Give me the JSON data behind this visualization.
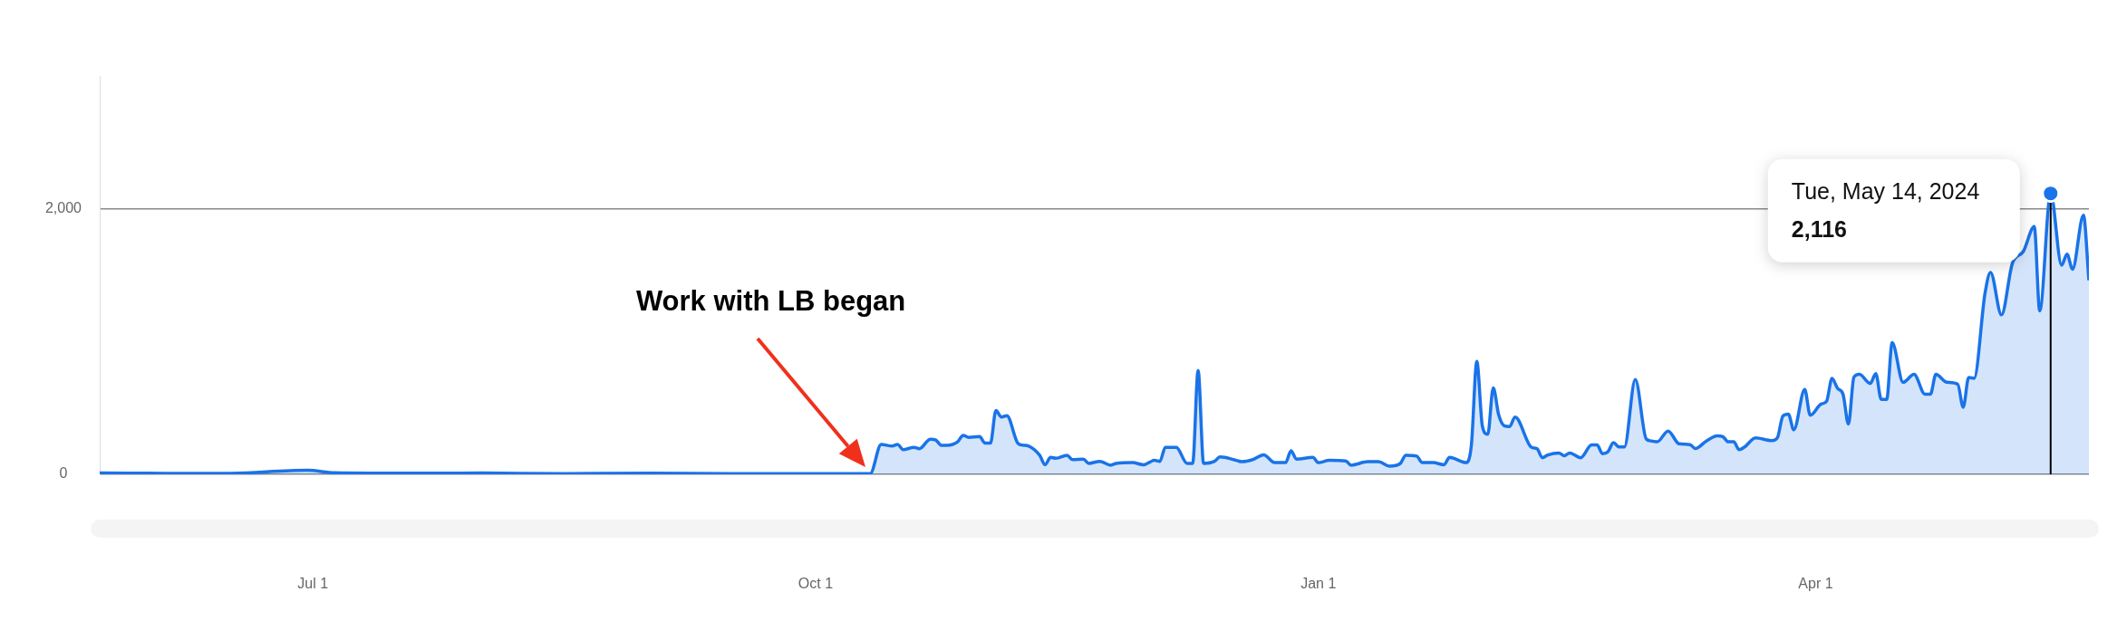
{
  "chart_data": {
    "type": "area",
    "color": "#1a73e8",
    "x": [
      "2023-05-23",
      "2023-06-01",
      "2023-06-15",
      "2023-06-30",
      "2023-07-05",
      "2023-07-20",
      "2023-08-01",
      "2023-08-15",
      "2023-09-01",
      "2023-09-15",
      "2023-10-01",
      "2023-10-11",
      "2023-10-13",
      "2023-10-15",
      "2023-10-16",
      "2023-10-17",
      "2023-10-19",
      "2023-10-20",
      "2023-10-22",
      "2023-10-23",
      "2023-10-24",
      "2023-10-25",
      "2023-10-27",
      "2023-10-28",
      "2023-10-29",
      "2023-10-31",
      "2023-11-01",
      "2023-11-02",
      "2023-11-03",
      "2023-11-04",
      "2023-11-05",
      "2023-11-07",
      "2023-11-08",
      "2023-11-09",
      "2023-11-11",
      "2023-11-12",
      "2023-11-13",
      "2023-11-14",
      "2023-11-16",
      "2023-11-17",
      "2023-11-19",
      "2023-11-20",
      "2023-11-22",
      "2023-11-24",
      "2023-11-25",
      "2023-11-28",
      "2023-11-30",
      "2023-12-02",
      "2023-12-03",
      "2023-12-04",
      "2023-12-06",
      "2023-12-08",
      "2023-12-09",
      "2023-12-10",
      "2023-12-11",
      "2023-12-13",
      "2023-12-14",
      "2023-12-17",
      "2023-12-18",
      "2023-12-20",
      "2023-12-22",
      "2023-12-24",
      "2023-12-26",
      "2023-12-27",
      "2023-12-28",
      "2023-12-31",
      "2024-01-01",
      "2024-01-03",
      "2024-01-06",
      "2024-01-07",
      "2024-01-10",
      "2024-01-12",
      "2024-01-14",
      "2024-01-16",
      "2024-01-17",
      "2024-01-19",
      "2024-01-20",
      "2024-01-22",
      "2024-01-24",
      "2024-01-25",
      "2024-01-28",
      "2024-01-29",
      "2024-01-30",
      "2024-01-31",
      "2024-02-01",
      "2024-02-02",
      "2024-02-03",
      "2024-02-04",
      "2024-02-05",
      "2024-02-06",
      "2024-02-09",
      "2024-02-10",
      "2024-02-11",
      "2024-02-12",
      "2024-02-14",
      "2024-02-15",
      "2024-02-16",
      "2024-02-18",
      "2024-02-20",
      "2024-02-21",
      "2024-02-22",
      "2024-02-23",
      "2024-02-24",
      "2024-02-25",
      "2024-02-26",
      "2024-02-28",
      "2024-03-01",
      "2024-03-02",
      "2024-03-03",
      "2024-03-05",
      "2024-03-07",
      "2024-03-09",
      "2024-03-10",
      "2024-03-12",
      "2024-03-14",
      "2024-03-15",
      "2024-03-16",
      "2024-03-17",
      "2024-03-18",
      "2024-03-19",
      "2024-03-21",
      "2024-03-24",
      "2024-03-25",
      "2024-03-26",
      "2024-03-27",
      "2024-03-28",
      "2024-03-30",
      "2024-03-31",
      "2024-04-02",
      "2024-04-03",
      "2024-04-04",
      "2024-04-05",
      "2024-04-06",
      "2024-04-07",
      "2024-04-08",
      "2024-04-09",
      "2024-04-11",
      "2024-04-12",
      "2024-04-13",
      "2024-04-14",
      "2024-04-15",
      "2024-04-17",
      "2024-04-19",
      "2024-04-21",
      "2024-04-22",
      "2024-04-23",
      "2024-04-25",
      "2024-04-27",
      "2024-04-28",
      "2024-04-29",
      "2024-04-30",
      "2024-05-02",
      "2024-05-03",
      "2024-05-05",
      "2024-05-07",
      "2024-05-09",
      "2024-05-11",
      "2024-05-12",
      "2024-05-14",
      "2024-05-16",
      "2024-05-17",
      "2024-05-18",
      "2024-05-20",
      "2024-05-21"
    ],
    "values": [
      10,
      8,
      6,
      30,
      12,
      8,
      10,
      5,
      8,
      5,
      5,
      5,
      225,
      213,
      225,
      186,
      203,
      193,
      265,
      258,
      219,
      219,
      245,
      294,
      278,
      284,
      235,
      235,
      480,
      432,
      441,
      235,
      219,
      213,
      144,
      72,
      128,
      121,
      144,
      111,
      114,
      82,
      98,
      69,
      82,
      88,
      72,
      105,
      98,
      203,
      203,
      82,
      82,
      782,
      82,
      98,
      131,
      105,
      95,
      111,
      147,
      88,
      88,
      177,
      114,
      128,
      88,
      105,
      101,
      69,
      95,
      95,
      62,
      82,
      144,
      137,
      88,
      88,
      72,
      128,
      88,
      219,
      850,
      366,
      301,
      651,
      448,
      366,
      360,
      432,
      203,
      193,
      125,
      146,
      161,
      140,
      161,
      125,
      221,
      221,
      155,
      170,
      239,
      206,
      206,
      714,
      266,
      251,
      245,
      326,
      230,
      224,
      194,
      251,
      290,
      284,
      245,
      245,
      185,
      206,
      275,
      254,
      275,
      439,
      454,
      335,
      639,
      445,
      529,
      550,
      723,
      648,
      604,
      379,
      732,
      753,
      684,
      759,
      565,
      565,
      992,
      693,
      753,
      604,
      604,
      753,
      693,
      678,
      505,
      729,
      723,
      1366,
      1521,
      1201,
      1590,
      1679,
      1866,
      1231,
      2116,
      1575,
      1658,
      1545,
      1952,
      1461
    ],
    "xlim": [
      "2023-05-23",
      "2024-05-21"
    ],
    "xticks": [
      {
        "value": "2023-07-01",
        "label": "Jul 1"
      },
      {
        "value": "2023-10-01",
        "label": "Oct 1"
      },
      {
        "value": "2024-01-01",
        "label": "Jan 1"
      },
      {
        "value": "2024-04-01",
        "label": "Apr 1"
      }
    ],
    "ylim": [
      0,
      3000
    ],
    "yticks": [
      0,
      {
        "value": 2000,
        "label": "2,000"
      }
    ],
    "grid": "y",
    "ref_lines": [
      {
        "axis": "x",
        "value": "2024-05-14",
        "color": "#000000"
      }
    ],
    "annotations": [
      "Work with LB began",
      "Tue, May 14, 2024",
      "2,116"
    ]
  }
}
